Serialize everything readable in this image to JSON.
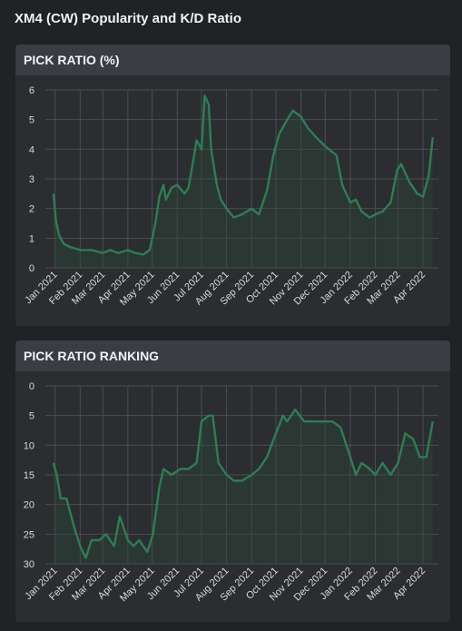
{
  "page": {
    "title": "XM4 (CW) Popularity and K/D Ratio"
  },
  "colors": {
    "background": "#202225",
    "panel": "#2b2d31",
    "panel_header": "#3a3d44",
    "line": "#2e7d55",
    "fill": "#2a4a3a",
    "grid": "#4a4d53",
    "text": "#f1f2f3"
  },
  "chart_data": [
    {
      "type": "area",
      "title": "PICK RATIO (%)",
      "xlabel": "",
      "ylabel": "",
      "ylim": [
        0,
        6
      ],
      "yticks": [
        0,
        1,
        2,
        3,
        4,
        5,
        6
      ],
      "inverted": false,
      "grid": true,
      "x_ticks": [
        "Jan 2021",
        "Feb 2021",
        "Mar 2021",
        "Apr 2021",
        "May 2021",
        "Jun 2021",
        "Jul 2021",
        "Aug 2021",
        "Sep 2021",
        "Oct 2021",
        "Nov 2021",
        "Dec 2021",
        "Jan 2022",
        "Feb 2022",
        "Mar 2022",
        "Apr 2022"
      ],
      "x_start": "2021-01-01",
      "x_end": "2022-04-15",
      "series": [
        {
          "x": [
            "2020-12-30",
            "2021-01-02",
            "2021-01-06",
            "2021-01-12",
            "2021-01-20",
            "2021-02-01",
            "2021-02-15",
            "2021-03-01",
            "2021-03-10",
            "2021-03-20",
            "2021-04-01",
            "2021-04-10",
            "2021-04-20",
            "2021-04-28",
            "2021-05-05",
            "2021-05-10",
            "2021-05-15",
            "2021-05-18",
            "2021-05-25",
            "2021-06-01",
            "2021-06-10",
            "2021-06-15",
            "2021-06-25",
            "2021-07-01",
            "2021-07-05",
            "2021-07-10",
            "2021-07-13",
            "2021-07-20",
            "2021-07-25",
            "2021-08-01",
            "2021-08-10",
            "2021-08-20",
            "2021-09-01",
            "2021-09-10",
            "2021-09-20",
            "2021-09-28",
            "2021-10-05",
            "2021-10-15",
            "2021-10-22",
            "2021-11-01",
            "2021-11-10",
            "2021-11-20",
            "2021-12-01",
            "2021-12-10",
            "2021-12-15",
            "2021-12-22",
            "2022-01-01",
            "2022-01-08",
            "2022-01-15",
            "2022-01-25",
            "2022-02-01",
            "2022-02-10",
            "2022-02-20",
            "2022-02-28",
            "2022-03-05",
            "2022-03-15",
            "2022-03-25",
            "2022-04-01",
            "2022-04-08",
            "2022-04-13"
          ],
          "y": [
            2.5,
            1.6,
            1.1,
            0.8,
            0.7,
            0.6,
            0.6,
            0.5,
            0.6,
            0.5,
            0.6,
            0.5,
            0.45,
            0.6,
            1.5,
            2.4,
            2.8,
            2.3,
            2.7,
            2.8,
            2.5,
            2.7,
            4.3,
            4.0,
            5.8,
            5.5,
            4.0,
            2.8,
            2.3,
            2.0,
            1.7,
            1.8,
            2.0,
            1.8,
            2.6,
            3.8,
            4.5,
            5.0,
            5.3,
            5.1,
            4.7,
            4.4,
            4.1,
            3.9,
            3.8,
            2.8,
            2.2,
            2.3,
            1.9,
            1.7,
            1.8,
            1.9,
            2.2,
            3.3,
            3.5,
            2.9,
            2.5,
            2.4,
            3.1,
            4.4
          ]
        }
      ]
    },
    {
      "type": "area",
      "title": "PICK RATIO RANKING",
      "xlabel": "",
      "ylabel": "",
      "ylim": [
        0,
        30
      ],
      "yticks": [
        0,
        5,
        10,
        15,
        20,
        25,
        30
      ],
      "inverted": true,
      "grid": true,
      "x_ticks": [
        "Jan 2021",
        "Feb 2021",
        "Mar 2021",
        "Apr 2021",
        "May 2021",
        "Jun 2021",
        "Jul 2021",
        "Aug 2021",
        "Sep 2021",
        "Oct 2021",
        "Nov 2021",
        "Dec 2021",
        "Jan 2022",
        "Feb 2022",
        "Mar 2022",
        "Apr 2022"
      ],
      "x_start": "2021-01-01",
      "x_end": "2022-04-15",
      "series": [
        {
          "x": [
            "2020-12-30",
            "2021-01-03",
            "2021-01-08",
            "2021-01-15",
            "2021-01-25",
            "2021-02-01",
            "2021-02-08",
            "2021-02-15",
            "2021-02-25",
            "2021-03-05",
            "2021-03-15",
            "2021-03-22",
            "2021-04-01",
            "2021-04-08",
            "2021-04-15",
            "2021-04-25",
            "2021-05-02",
            "2021-05-10",
            "2021-05-15",
            "2021-05-25",
            "2021-06-05",
            "2021-06-15",
            "2021-06-25",
            "2021-07-01",
            "2021-07-10",
            "2021-07-15",
            "2021-07-22",
            "2021-08-01",
            "2021-08-10",
            "2021-08-20",
            "2021-09-01",
            "2021-09-10",
            "2021-09-20",
            "2021-10-01",
            "2021-10-10",
            "2021-10-15",
            "2021-10-25",
            "2021-11-05",
            "2021-11-15",
            "2021-12-01",
            "2021-12-10",
            "2021-12-20",
            "2022-01-01",
            "2022-01-08",
            "2022-01-15",
            "2022-01-25",
            "2022-02-01",
            "2022-02-10",
            "2022-02-20",
            "2022-03-01",
            "2022-03-10",
            "2022-03-20",
            "2022-03-28",
            "2022-04-05",
            "2022-04-13"
          ],
          "y": [
            13,
            15,
            19,
            19,
            24,
            27,
            29,
            26,
            26,
            25,
            27,
            22,
            26,
            27,
            26,
            28,
            25,
            17,
            14,
            15,
            14,
            14,
            13,
            6,
            5,
            5,
            13,
            15,
            16,
            16,
            15,
            14,
            12,
            8,
            5,
            6,
            4,
            6,
            6,
            6,
            6,
            7,
            12,
            15,
            13,
            14,
            15,
            13,
            15,
            13,
            8,
            9,
            12,
            12,
            6
          ]
        }
      ]
    }
  ]
}
